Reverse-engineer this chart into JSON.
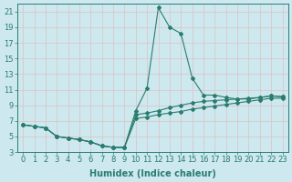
{
  "xlabel": "Humidex (Indice chaleur)",
  "ylabel": "",
  "bg_color": "#cde8ef",
  "grid_color": "#c8d8dc",
  "line_color": "#2a7d6e",
  "xlim": [
    -0.5,
    23.5
  ],
  "ylim": [
    3,
    22
  ],
  "xticks": [
    0,
    1,
    2,
    3,
    4,
    5,
    6,
    7,
    8,
    9,
    10,
    11,
    12,
    13,
    14,
    15,
    16,
    17,
    18,
    19,
    20,
    21,
    22,
    23
  ],
  "yticks": [
    3,
    5,
    7,
    9,
    11,
    13,
    15,
    17,
    19,
    21
  ],
  "series": [
    [
      6.5,
      6.3,
      6.1,
      5.0,
      4.8,
      4.6,
      4.3,
      3.8,
      3.6,
      3.6,
      8.3,
      11.2,
      21.5,
      19.0,
      18.2,
      12.5,
      10.3,
      10.3,
      10.0,
      9.8,
      9.8,
      10.0,
      10.2,
      10.1
    ],
    [
      6.5,
      6.3,
      6.1,
      5.0,
      4.8,
      4.6,
      4.3,
      3.8,
      3.6,
      3.6,
      7.8,
      8.0,
      8.3,
      8.7,
      9.0,
      9.3,
      9.5,
      9.6,
      9.7,
      9.8,
      9.9,
      10.0,
      10.2,
      10.1
    ],
    [
      6.5,
      6.3,
      6.1,
      5.0,
      4.8,
      4.6,
      4.3,
      3.8,
      3.6,
      3.6,
      7.3,
      7.5,
      7.8,
      8.0,
      8.2,
      8.5,
      8.7,
      8.9,
      9.1,
      9.3,
      9.5,
      9.7,
      9.9,
      9.9
    ]
  ],
  "font_size": 6,
  "label_font_size": 7,
  "marker": "D",
  "marker_size": 2.0,
  "line_width": 0.8
}
